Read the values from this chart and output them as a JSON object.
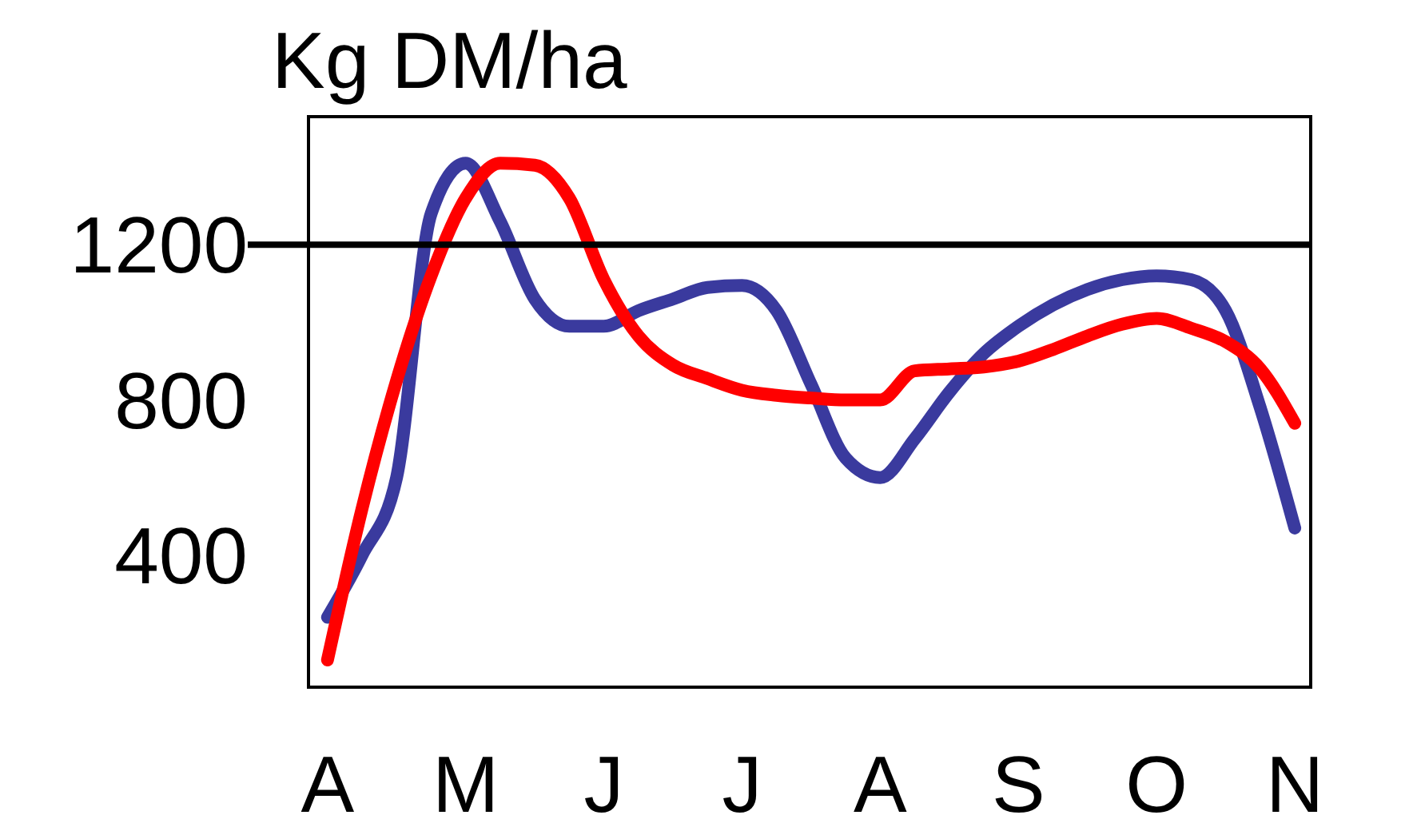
{
  "chart_data": {
    "type": "line",
    "title": "Kg DM/ha",
    "categories": [
      "A",
      null,
      null,
      null,
      "M",
      null,
      null,
      null,
      "J",
      null,
      null,
      null,
      "J",
      null,
      null,
      null,
      "A",
      null,
      null,
      null,
      "S",
      null,
      null,
      null,
      "O",
      null,
      null,
      null,
      "N"
    ],
    "ylim": [
      60,
      1530
    ],
    "yticks": [
      400,
      800,
      1200
    ],
    "grid": false,
    "marker": "none",
    "line_style": "solid",
    "ref_lines": [
      {
        "axis": "y",
        "value": 1200,
        "color": "#000000"
      }
    ],
    "series": [
      {
        "color": "#3a3a9e",
        "values": [
          240,
          400,
          600,
          1280,
          1410,
          1260,
          1060,
          990,
          990,
          1030,
          1060,
          1090,
          1095,
          1030,
          840,
          650,
          600,
          700,
          820,
          920,
          990,
          1045,
          1085,
          1110,
          1120,
          1110,
          1030,
          780,
          470
        ]
      },
      {
        "color": "#ff0000",
        "values": [
          130,
          520,
          850,
          1120,
          1320,
          1410,
          1405,
          1320,
          1110,
          965,
          890,
          855,
          825,
          812,
          805,
          800,
          800,
          875,
          880,
          885,
          900,
          930,
          965,
          995,
          1010,
          985,
          950,
          880,
          740
        ]
      }
    ]
  }
}
